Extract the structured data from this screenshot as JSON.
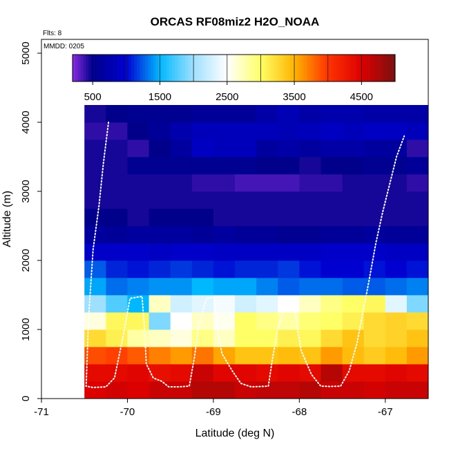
{
  "chart_data": {
    "type": "heatmap",
    "title": "ORCAS RF08miz2 H2O_NOAA",
    "xlabel": "Latitude (deg N)",
    "ylabel": "Altitude (m)",
    "xlim": [
      -71,
      -66.5
    ],
    "ylim": [
      0,
      5200
    ],
    "x_ticks": [
      "-71",
      "-70",
      "-69",
      "-68",
      "-67"
    ],
    "y_ticks": [
      "0",
      "1000",
      "2000",
      "3000",
      "4000",
      "5000"
    ],
    "annotations": [
      "Flts: 8",
      "MMDD: 0205"
    ],
    "colorbar": {
      "min": 200,
      "max": 5000,
      "ticks": [
        "500",
        "1500",
        "2500",
        "3500",
        "4500"
      ]
    },
    "grid": {
      "x_start": -70.5,
      "x_step": 0.25,
      "y_start": 0,
      "y_step": 250,
      "notes": "values in ppmv; rows from lowest altitude upward, null = no data",
      "rows": [
        [
          4500,
          4550,
          4500,
          4600,
          4600,
          4700,
          4700,
          4600,
          4650,
          4650,
          4700,
          4600,
          4600,
          4550,
          4600,
          4600,
          null,
          null
        ],
        [
          4400,
          4400,
          4450,
          4350,
          4400,
          4600,
          4450,
          4450,
          4400,
          4450,
          4400,
          4700,
          4400,
          4400,
          4450,
          4400,
          null,
          null
        ],
        [
          3900,
          3950,
          3850,
          3700,
          3600,
          3750,
          3550,
          3400,
          3400,
          3450,
          3400,
          3600,
          3450,
          3350,
          3450,
          3600,
          null,
          null
        ],
        [
          3250,
          3100,
          2800,
          2700,
          2600,
          2900,
          2700,
          3000,
          3000,
          3100,
          3050,
          3250,
          3400,
          3250,
          3300,
          3400,
          3300,
          null
        ],
        [
          2600,
          3050,
          3050,
          1900,
          2500,
          2700,
          2550,
          3000,
          2900,
          2800,
          2950,
          3000,
          3100,
          3250,
          3300,
          3250,
          3300,
          null
        ],
        [
          2000,
          1750,
          1500,
          2700,
          2250,
          2350,
          2450,
          2250,
          2350,
          2500,
          2700,
          2900,
          3000,
          3050,
          2350,
          1900,
          1700,
          null
        ],
        [
          1450,
          1300,
          1350,
          1400,
          1400,
          1500,
          1450,
          1450,
          1350,
          1250,
          1300,
          1300,
          1250,
          1250,
          1300,
          1350,
          1300,
          null
        ],
        [
          1250,
          1100,
          1050,
          1100,
          1150,
          1100,
          1050,
          1100,
          1100,
          1150,
          1050,
          1000,
          1000,
          1050,
          1000,
          1050,
          1000,
          null
        ],
        [
          950,
          950,
          950,
          900,
          950,
          950,
          900,
          900,
          900,
          900,
          900,
          950,
          950,
          950,
          900,
          900,
          850,
          null
        ],
        [
          650,
          600,
          650,
          650,
          650,
          600,
          650,
          600,
          600,
          550,
          550,
          600,
          600,
          650,
          600,
          600,
          600,
          550
        ],
        [
          500,
          500,
          450,
          500,
          500,
          500,
          450,
          450,
          450,
          450,
          450,
          450,
          450,
          450,
          450,
          450,
          450,
          450
        ],
        [
          450,
          450,
          450,
          450,
          450,
          450,
          450,
          450,
          450,
          450,
          450,
          450,
          450,
          450,
          450,
          450,
          450,
          450
        ],
        [
          450,
          450,
          450,
          450,
          450,
          400,
          400,
          350,
          350,
          350,
          400,
          400,
          450,
          450,
          450,
          400,
          350,
          350
        ],
        [
          450,
          450,
          550,
          550,
          550,
          550,
          550,
          550,
          500,
          500,
          450,
          500,
          500,
          550,
          550,
          600,
          550,
          550
        ],
        [
          450,
          450,
          400,
          500,
          650,
          900,
          850,
          850,
          650,
          700,
          650,
          700,
          700,
          650,
          650,
          400,
          200,
          350
        ],
        [
          400,
          400,
          500,
          600,
          750,
          850,
          850,
          850,
          850,
          800,
          850,
          900,
          850,
          900,
          900,
          850,
          200,
          400
        ],
        [
          450,
          500,
          550,
          550,
          550,
          600,
          600,
          600,
          700,
          800,
          700,
          750,
          750,
          700,
          700,
          700,
          600,
          500
        ]
      ]
    },
    "flight_track": {
      "lat": [
        -70.22,
        -70.28,
        -70.33,
        -70.4,
        -70.45,
        -70.48,
        -70.4,
        -70.25,
        -70.15,
        -70.05,
        -69.97,
        -69.83,
        -69.8,
        -69.78,
        -69.7,
        -69.6,
        -69.52,
        -69.4,
        -69.28,
        -69.22,
        -69.17,
        -69.08,
        -68.99,
        -68.95,
        -68.9,
        -68.78,
        -68.68,
        -68.56,
        -68.45,
        -68.36,
        -68.31,
        -68.25,
        -68.15,
        -68.07,
        -68.02,
        -67.98,
        -67.86,
        -67.75,
        -67.64,
        -67.52,
        -67.42,
        -67.33,
        -67.26,
        -67.19,
        -67.11,
        -67.03,
        -66.95,
        -66.87,
        -66.78
      ],
      "alt": [
        4000,
        3400,
        2800,
        2150,
        1200,
        180,
        160,
        170,
        300,
        900,
        1450,
        1480,
        1000,
        500,
        300,
        250,
        170,
        170,
        180,
        600,
        1050,
        1450,
        1470,
        1000,
        650,
        400,
        220,
        170,
        175,
        180,
        600,
        1000,
        1440,
        1470,
        1000,
        700,
        350,
        180,
        175,
        180,
        400,
        800,
        1250,
        1700,
        2250,
        2700,
        3100,
        3500,
        3800
      ]
    }
  }
}
